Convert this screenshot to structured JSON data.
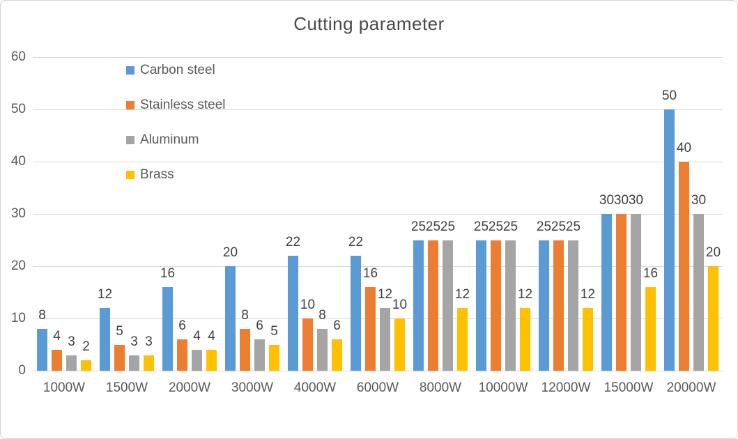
{
  "chart_data": {
    "type": "bar",
    "title": "Cutting parameter",
    "categories": [
      "1000W",
      "1500W",
      "2000W",
      "3000W",
      "4000W",
      "6000W",
      "8000W",
      "10000W",
      "12000W",
      "15000W",
      "20000W"
    ],
    "series": [
      {
        "name": "Carbon steel",
        "color": "#5B9BD5",
        "values": [
          8,
          12,
          16,
          20,
          22,
          22,
          25,
          25,
          25,
          30,
          50
        ]
      },
      {
        "name": "Stainless steel",
        "color": "#ED7D31",
        "values": [
          4,
          5,
          6,
          8,
          10,
          16,
          25,
          25,
          25,
          30,
          40
        ]
      },
      {
        "name": "Aluminum",
        "color": "#A5A5A5",
        "values": [
          3,
          3,
          4,
          6,
          8,
          12,
          25,
          25,
          25,
          30,
          30
        ]
      },
      {
        "name": "Brass",
        "color": "#FFC000",
        "values": [
          2,
          3,
          4,
          5,
          6,
          10,
          12,
          12,
          12,
          16,
          20
        ]
      }
    ],
    "xlabel": "",
    "ylabel": "",
    "ylim": [
      0,
      60
    ],
    "yticks": [
      0,
      10,
      20,
      30,
      40,
      50,
      60
    ],
    "grid": true,
    "legend_position": "inside-top-left",
    "data_labels": "outside-end"
  },
  "style": {
    "background": "#FFFFFF",
    "border_color": "#D2D2D2",
    "grid_color": "#D9D9D9",
    "axis_text_color": "#595959",
    "data_label_color": "#404040",
    "title_color": "#4A4A4A"
  }
}
